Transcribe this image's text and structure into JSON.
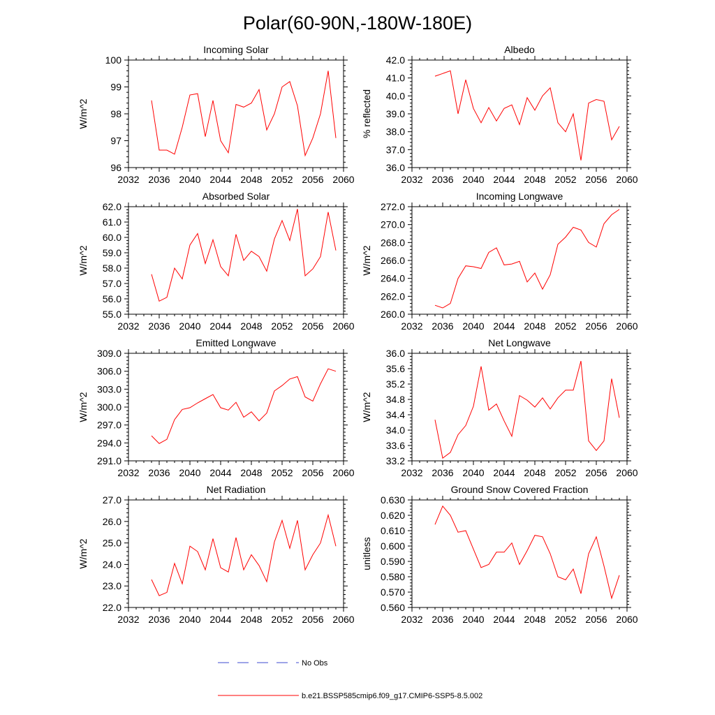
{
  "figure": {
    "title": "Polar(60-90N,-180W-180E)"
  },
  "legend": {
    "obs_label": "No Obs",
    "obs_color": "#3c4bd2",
    "model_label": "b.e21.BSSP585cmip6.f09_g17.CMIP6-SSP5-8.5.002",
    "model_color": "#ff0000"
  },
  "chart_data": [
    {
      "type": "line",
      "title": "Incoming Solar",
      "ylabel": "W/m^2",
      "xlim": [
        2032,
        2060
      ],
      "ylim": [
        96,
        100
      ],
      "xticks": [
        2032,
        2036,
        2040,
        2044,
        2048,
        2052,
        2056,
        2060
      ],
      "yticks": [
        96,
        97,
        98,
        99,
        100
      ],
      "ydecimals": 0,
      "x": [
        2035,
        2036,
        2037,
        2038,
        2039,
        2040,
        2041,
        2042,
        2043,
        2044,
        2045,
        2046,
        2047,
        2048,
        2049,
        2050,
        2051,
        2052,
        2053,
        2054,
        2055,
        2056,
        2057,
        2058,
        2059
      ],
      "series": [
        {
          "name": "b.e21.BSSP585cmip6.f09_g17.CMIP6-SSP5-8.5.002",
          "values": [
            98.5,
            96.65,
            96.65,
            96.5,
            97.5,
            98.7,
            98.75,
            97.15,
            98.5,
            97.0,
            96.55,
            98.35,
            98.25,
            98.4,
            98.9,
            97.4,
            98.0,
            99.0,
            99.2,
            98.3,
            96.45,
            97.1,
            98.0,
            99.6,
            97.1
          ]
        }
      ]
    },
    {
      "type": "line",
      "title": "Albedo",
      "ylabel": "% reflected",
      "xlim": [
        2032,
        2060
      ],
      "ylim": [
        36,
        42
      ],
      "xticks": [
        2032,
        2036,
        2040,
        2044,
        2048,
        2052,
        2056,
        2060
      ],
      "yticks": [
        36,
        37,
        38,
        39,
        40,
        41,
        42
      ],
      "ydecimals": 1,
      "x": [
        2035,
        2036,
        2037,
        2038,
        2039,
        2040,
        2041,
        2042,
        2043,
        2044,
        2045,
        2046,
        2047,
        2048,
        2049,
        2050,
        2051,
        2052,
        2053,
        2054,
        2055,
        2056,
        2057,
        2058,
        2059
      ],
      "series": [
        {
          "name": "b.e21.BSSP585cmip6.f09_g17.CMIP6-SSP5-8.5.002",
          "values": [
            41.1,
            41.25,
            41.4,
            39.0,
            40.9,
            39.3,
            38.5,
            39.35,
            38.6,
            39.3,
            39.5,
            38.4,
            39.9,
            39.2,
            40.0,
            40.45,
            38.5,
            38.0,
            39.0,
            36.4,
            39.6,
            39.8,
            39.7,
            37.55,
            38.3
          ]
        }
      ]
    },
    {
      "type": "line",
      "title": "Absorbed Solar",
      "ylabel": "W/m^2",
      "xlim": [
        2032,
        2060
      ],
      "ylim": [
        55,
        62
      ],
      "xticks": [
        2032,
        2036,
        2040,
        2044,
        2048,
        2052,
        2056,
        2060
      ],
      "yticks": [
        55,
        56,
        57,
        58,
        59,
        60,
        61,
        62
      ],
      "ydecimals": 1,
      "x": [
        2035,
        2036,
        2037,
        2038,
        2039,
        2040,
        2041,
        2042,
        2043,
        2044,
        2045,
        2046,
        2047,
        2048,
        2049,
        2050,
        2051,
        2052,
        2053,
        2054,
        2055,
        2056,
        2057,
        2058,
        2059
      ],
      "series": [
        {
          "name": "b.e21.BSSP585cmip6.f09_g17.CMIP6-SSP5-8.5.002",
          "values": [
            57.6,
            55.85,
            56.1,
            58.0,
            57.3,
            59.5,
            60.25,
            58.3,
            59.85,
            58.1,
            57.5,
            60.2,
            58.5,
            59.1,
            58.75,
            57.8,
            59.9,
            61.1,
            59.8,
            61.85,
            57.5,
            57.95,
            58.75,
            61.65,
            59.15
          ]
        }
      ]
    },
    {
      "type": "line",
      "title": "Incoming Longwave",
      "ylabel": "W/m^2",
      "xlim": [
        2032,
        2060
      ],
      "ylim": [
        260,
        272
      ],
      "xticks": [
        2032,
        2036,
        2040,
        2044,
        2048,
        2052,
        2056,
        2060
      ],
      "yticks": [
        260,
        262,
        264,
        266,
        268,
        270,
        272
      ],
      "ydecimals": 1,
      "x": [
        2035,
        2036,
        2037,
        2038,
        2039,
        2040,
        2041,
        2042,
        2043,
        2044,
        2045,
        2046,
        2047,
        2048,
        2049,
        2050,
        2051,
        2052,
        2053,
        2054,
        2055,
        2056,
        2057,
        2058,
        2059
      ],
      "series": [
        {
          "name": "b.e21.BSSP585cmip6.f09_g17.CMIP6-SSP5-8.5.002",
          "values": [
            261.0,
            260.7,
            261.2,
            264.0,
            265.4,
            265.3,
            265.1,
            266.9,
            267.4,
            265.5,
            265.6,
            265.9,
            263.6,
            264.6,
            262.8,
            264.4,
            267.8,
            268.6,
            269.7,
            269.4,
            268.0,
            267.5,
            270.1,
            271.1,
            271.7
          ]
        }
      ]
    },
    {
      "type": "line",
      "title": "Emitted Longwave",
      "ylabel": "W/m^2",
      "xlim": [
        2032,
        2060
      ],
      "ylim": [
        291,
        309
      ],
      "xticks": [
        2032,
        2036,
        2040,
        2044,
        2048,
        2052,
        2056,
        2060
      ],
      "yticks": [
        291,
        294,
        297,
        300,
        303,
        306,
        309
      ],
      "ydecimals": 1,
      "x": [
        2035,
        2036,
        2037,
        2038,
        2039,
        2040,
        2041,
        2042,
        2043,
        2044,
        2045,
        2046,
        2047,
        2048,
        2049,
        2050,
        2051,
        2052,
        2053,
        2054,
        2055,
        2056,
        2057,
        2058,
        2059
      ],
      "series": [
        {
          "name": "b.e21.BSSP585cmip6.f09_g17.CMIP6-SSP5-8.5.002",
          "values": [
            295.2,
            293.9,
            294.6,
            297.9,
            299.6,
            299.9,
            300.7,
            301.4,
            302.1,
            299.9,
            299.5,
            300.8,
            298.3,
            299.2,
            297.7,
            299.0,
            302.7,
            303.6,
            304.7,
            305.1,
            301.7,
            301.0,
            303.9,
            306.4,
            306.0
          ]
        }
      ]
    },
    {
      "type": "line",
      "title": "Net Longwave",
      "ylabel": "W/m^2",
      "xlim": [
        2032,
        2060
      ],
      "ylim": [
        33.2,
        36.0
      ],
      "xticks": [
        2032,
        2036,
        2040,
        2044,
        2048,
        2052,
        2056,
        2060
      ],
      "yticks": [
        33.2,
        33.6,
        34.0,
        34.4,
        34.8,
        35.2,
        35.6,
        36.0
      ],
      "ydecimals": 1,
      "x": [
        2035,
        2036,
        2037,
        2038,
        2039,
        2040,
        2041,
        2042,
        2043,
        2044,
        2045,
        2046,
        2047,
        2048,
        2049,
        2050,
        2051,
        2052,
        2053,
        2054,
        2055,
        2056,
        2057,
        2058,
        2059
      ],
      "series": [
        {
          "name": "b.e21.BSSP585cmip6.f09_g17.CMIP6-SSP5-8.5.002",
          "values": [
            34.27,
            33.27,
            33.42,
            33.88,
            34.12,
            34.62,
            35.66,
            34.52,
            34.68,
            34.24,
            33.84,
            34.9,
            34.78,
            34.6,
            34.84,
            34.55,
            34.84,
            35.04,
            35.04,
            35.8,
            33.72,
            33.47,
            33.72,
            35.34,
            34.32
          ]
        }
      ]
    },
    {
      "type": "line",
      "title": "Net Radiation",
      "ylabel": "W/m^2",
      "xlim": [
        2032,
        2060
      ],
      "ylim": [
        22,
        27
      ],
      "xticks": [
        2032,
        2036,
        2040,
        2044,
        2048,
        2052,
        2056,
        2060
      ],
      "yticks": [
        22,
        23,
        24,
        25,
        26,
        27
      ],
      "ydecimals": 1,
      "x": [
        2035,
        2036,
        2037,
        2038,
        2039,
        2040,
        2041,
        2042,
        2043,
        2044,
        2045,
        2046,
        2047,
        2048,
        2049,
        2050,
        2051,
        2052,
        2053,
        2054,
        2055,
        2056,
        2057,
        2058,
        2059
      ],
      "series": [
        {
          "name": "b.e21.BSSP585cmip6.f09_g17.CMIP6-SSP5-8.5.002",
          "values": [
            23.3,
            22.55,
            22.7,
            24.05,
            23.1,
            24.85,
            24.6,
            23.75,
            25.2,
            23.85,
            23.65,
            25.25,
            23.75,
            24.45,
            23.95,
            23.2,
            25.05,
            26.05,
            24.75,
            26.05,
            23.75,
            24.45,
            25.0,
            26.3,
            24.85
          ]
        }
      ]
    },
    {
      "type": "line",
      "title": "Ground Snow Covered Fraction",
      "ylabel": "unitless",
      "xlim": [
        2032,
        2060
      ],
      "ylim": [
        0.56,
        0.63
      ],
      "xticks": [
        2032,
        2036,
        2040,
        2044,
        2048,
        2052,
        2056,
        2060
      ],
      "yticks": [
        0.56,
        0.57,
        0.58,
        0.59,
        0.6,
        0.61,
        0.62,
        0.63
      ],
      "ydecimals": 3,
      "x": [
        2035,
        2036,
        2037,
        2038,
        2039,
        2040,
        2041,
        2042,
        2043,
        2044,
        2045,
        2046,
        2047,
        2048,
        2049,
        2050,
        2051,
        2052,
        2053,
        2054,
        2055,
        2056,
        2057,
        2058,
        2059
      ],
      "series": [
        {
          "name": "b.e21.BSSP585cmip6.f09_g17.CMIP6-SSP5-8.5.002",
          "values": [
            0.614,
            0.626,
            0.62,
            0.609,
            0.61,
            0.598,
            0.586,
            0.588,
            0.596,
            0.596,
            0.602,
            0.588,
            0.597,
            0.607,
            0.606,
            0.595,
            0.58,
            0.578,
            0.585,
            0.569,
            0.595,
            0.606,
            0.587,
            0.566,
            0.581
          ]
        }
      ]
    }
  ]
}
